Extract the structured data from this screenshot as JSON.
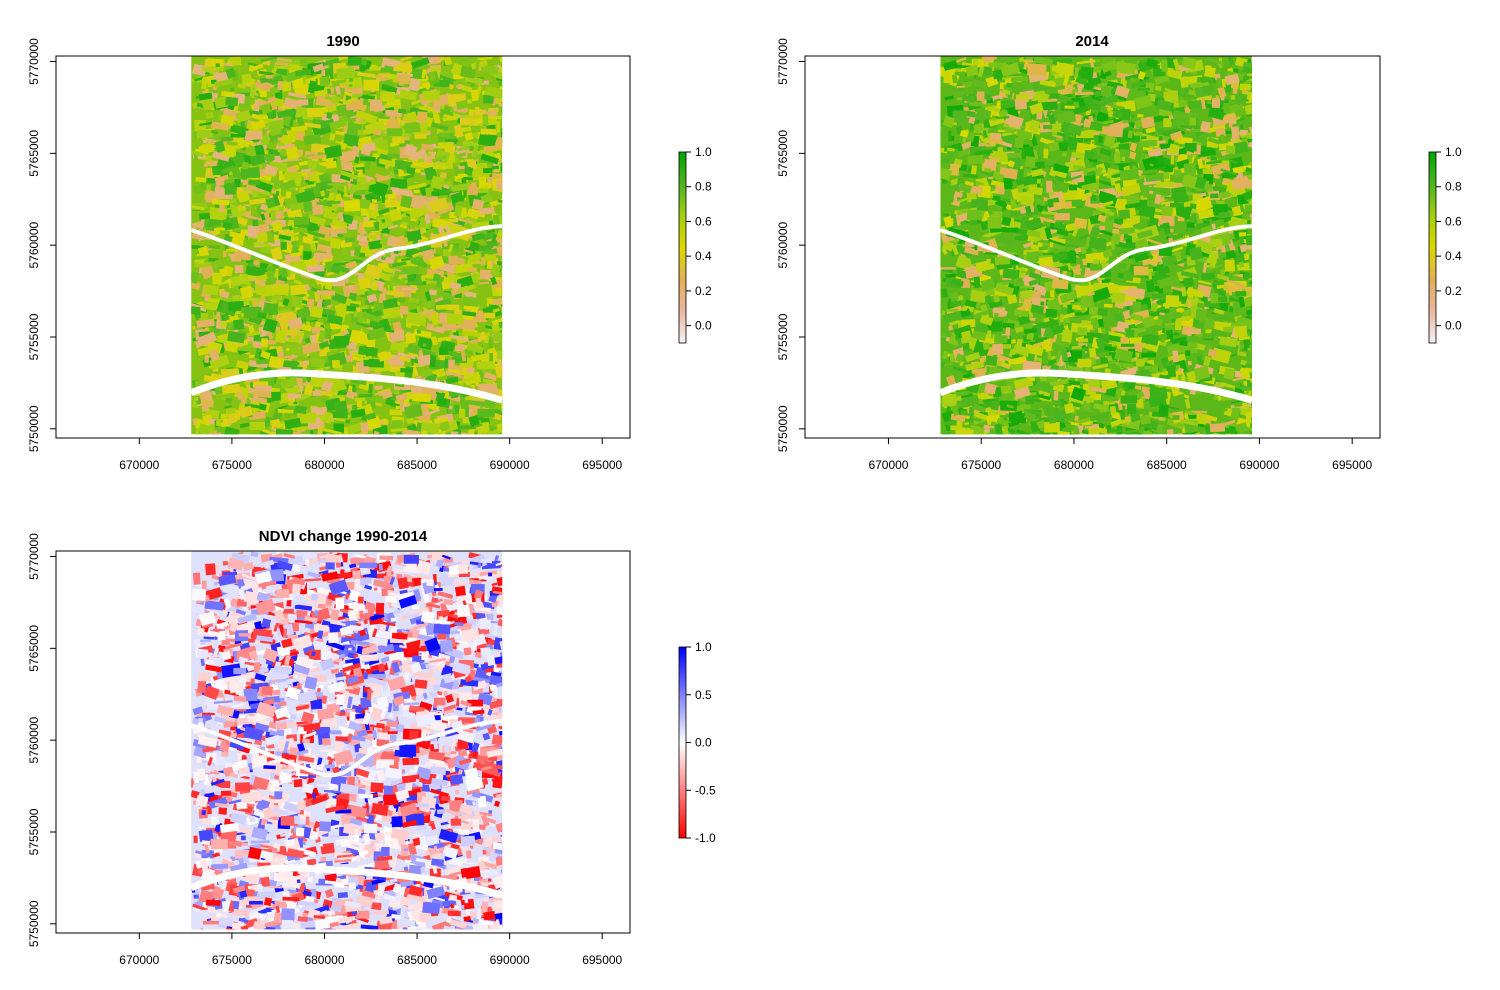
{
  "chart_data": [
    {
      "type": "heatmap",
      "title": "1990",
      "xlim": [
        665500,
        696500
      ],
      "ylim": [
        5749500,
        5770300
      ],
      "raster_extent": {
        "x": [
          672800,
          689600
        ],
        "y": [
          5749700,
          5770300
        ]
      },
      "x_ticks": [
        670000,
        675000,
        680000,
        685000,
        690000,
        695000
      ],
      "x_tick_labels": [
        "670000",
        "675000",
        "680000",
        "685000",
        "690000",
        "695000"
      ],
      "y_ticks": [
        5750000,
        5755000,
        5760000,
        5765000,
        5770000
      ],
      "y_tick_labels": [
        "5750000",
        "5755000",
        "5760000",
        "5765000",
        "5770000"
      ],
      "legend": {
        "range": [
          -0.1,
          1.0
        ],
        "ticks": [
          0.0,
          0.2,
          0.4,
          0.6,
          0.8,
          1.0
        ],
        "tick_labels": [
          "0.0",
          "0.2",
          "0.4",
          "0.6",
          "0.8",
          "1.0"
        ],
        "colors": [
          "#f2f2f2",
          "#eab7a1",
          "#e0b055",
          "#d9d800",
          "#a3cf14",
          "#4cb51f",
          "#00a600"
        ]
      },
      "description_palette": "terrain.colors"
    },
    {
      "type": "heatmap",
      "title": "2014",
      "xlim": [
        665500,
        696500
      ],
      "ylim": [
        5749500,
        5770300
      ],
      "raster_extent": {
        "x": [
          672800,
          689600
        ],
        "y": [
          5749700,
          5770300
        ]
      },
      "x_ticks": [
        670000,
        675000,
        680000,
        685000,
        690000,
        695000
      ],
      "x_tick_labels": [
        "670000",
        "675000",
        "680000",
        "685000",
        "690000",
        "695000"
      ],
      "y_ticks": [
        5750000,
        5755000,
        5760000,
        5765000,
        5770000
      ],
      "y_tick_labels": [
        "5750000",
        "5755000",
        "5760000",
        "5765000",
        "5770000"
      ],
      "legend": {
        "range": [
          -0.1,
          1.0
        ],
        "ticks": [
          0.0,
          0.2,
          0.4,
          0.6,
          0.8,
          1.0
        ],
        "tick_labels": [
          "0.0",
          "0.2",
          "0.4",
          "0.6",
          "0.8",
          "1.0"
        ],
        "colors": [
          "#f2f2f2",
          "#eab7a1",
          "#e0b055",
          "#d9d800",
          "#a3cf14",
          "#4cb51f",
          "#00a600"
        ]
      },
      "description_palette": "terrain.colors"
    },
    {
      "type": "heatmap",
      "title": "NDVI change 1990-2014",
      "xlim": [
        665500,
        696500
      ],
      "ylim": [
        5749500,
        5770300
      ],
      "raster_extent": {
        "x": [
          672800,
          689600
        ],
        "y": [
          5749700,
          5770300
        ]
      },
      "x_ticks": [
        670000,
        675000,
        680000,
        685000,
        690000,
        695000
      ],
      "x_tick_labels": [
        "670000",
        "675000",
        "680000",
        "685000",
        "690000",
        "695000"
      ],
      "y_ticks": [
        5750000,
        5755000,
        5760000,
        5765000,
        5770000
      ],
      "y_tick_labels": [
        "5750000",
        "5755000",
        "5760000",
        "5765000",
        "5770000"
      ],
      "legend": {
        "range": [
          -1.0,
          1.0
        ],
        "ticks": [
          -1.0,
          -0.5,
          0.0,
          0.5,
          1.0
        ],
        "tick_labels": [
          "-1.0",
          "-0.5",
          "0.0",
          "0.5",
          "1.0"
        ],
        "colors": [
          "#ff0000",
          "#ffffff",
          "#0000ff"
        ]
      },
      "description_palette": "red-white-blue"
    }
  ]
}
